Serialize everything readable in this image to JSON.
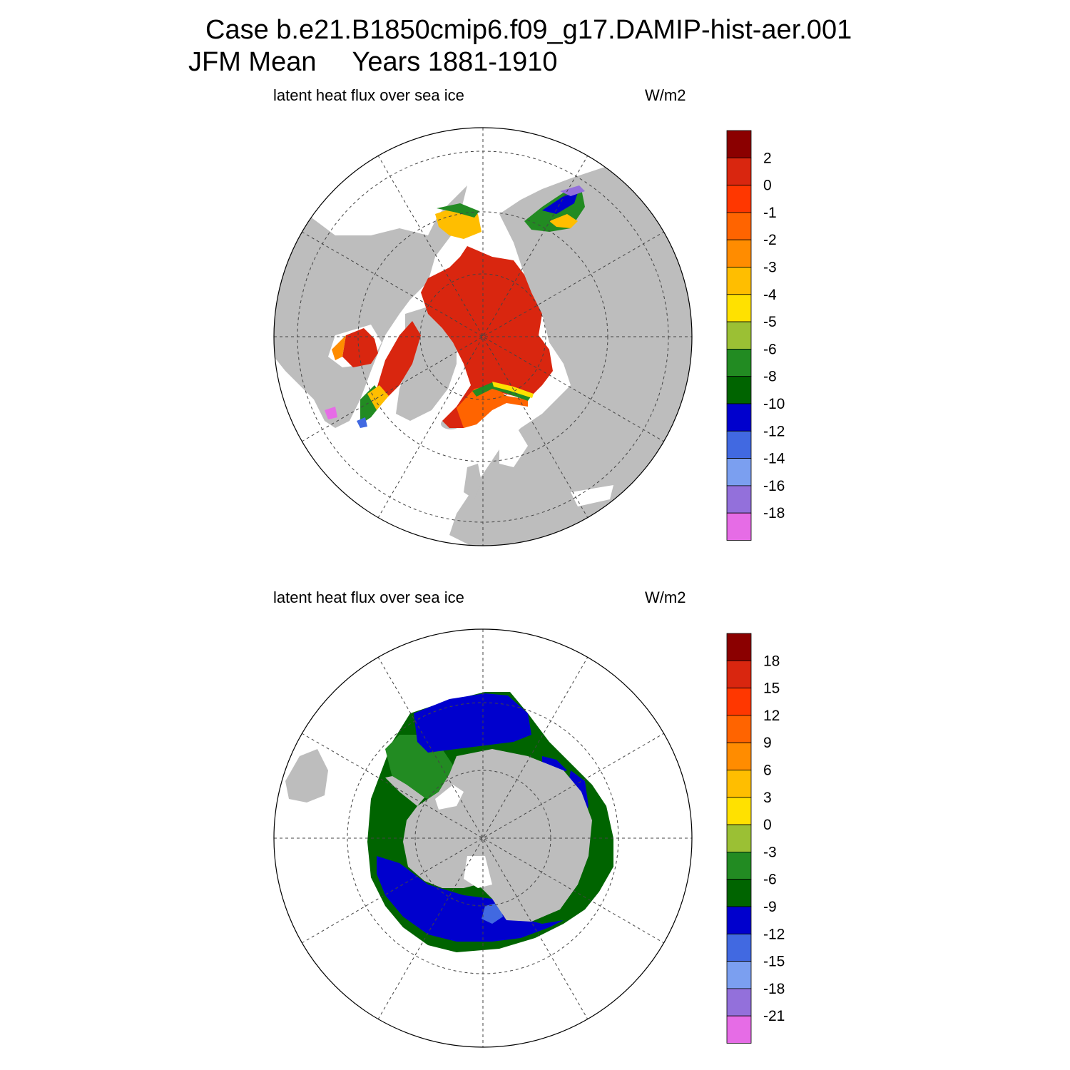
{
  "title": {
    "case_line": "Case b.e21.B1850cmip6.f09_g17.DAMIP-hist-aer.001",
    "season": "JFM Mean",
    "years": "Years 1881-1910"
  },
  "colors": {
    "land": "#bdbdbd",
    "background": "#ffffff",
    "palette": [
      "#8b0000",
      "#d9260f",
      "#ff3700",
      "#ff6400",
      "#ff8c00",
      "#ffbe00",
      "#ffe100",
      "#9bc034",
      "#228b22",
      "#006400",
      "#0000cd",
      "#4169e1",
      "#7b9ff0",
      "#9370db",
      "#e66ce6"
    ]
  },
  "panels": [
    {
      "id": "north",
      "hemisphere": "Northern",
      "variable_label": "latent heat flux over sea ice",
      "units_label": "W/m2",
      "colorbar": {
        "levels": [
          "2",
          "0",
          "-1",
          "-2",
          "-3",
          "-4",
          "-5",
          "-6",
          "-8",
          "-10",
          "-12",
          "-14",
          "-16",
          "-18"
        ]
      }
    },
    {
      "id": "south",
      "hemisphere": "Southern",
      "variable_label": "latent heat flux over sea ice",
      "units_label": "W/m2",
      "colorbar": {
        "levels": [
          "18",
          "15",
          "12",
          "9",
          "6",
          "3",
          "0",
          "-3",
          "-6",
          "-9",
          "-12",
          "-15",
          "-18",
          "-21"
        ]
      }
    }
  ]
}
